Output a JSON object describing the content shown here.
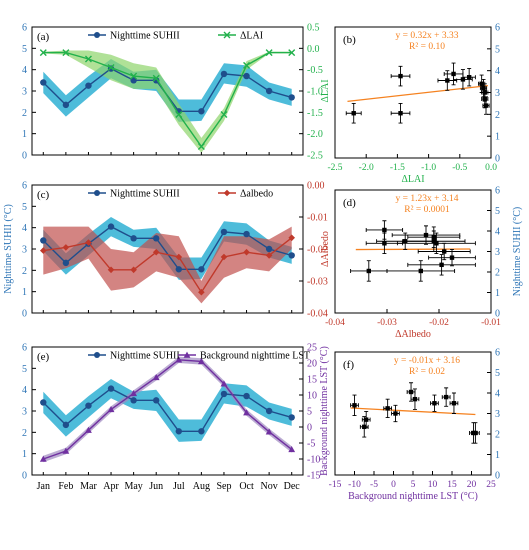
{
  "months": [
    "Jan",
    "Feb",
    "Mar",
    "Apr",
    "May",
    "Jun",
    "Jul",
    "Aug",
    "Sep",
    "Oct",
    "Nov",
    "Dec"
  ],
  "colors": {
    "suhii": "#1f4e8c",
    "suhii_band": "#2fb0d4",
    "lai": "#22b14c",
    "lai_band": "#8fd46b",
    "albedo": "#b22222",
    "albedo_band": "#c0504d",
    "lst": "#6b3f8f",
    "lst_band": "#a08ac0",
    "fit": "#f58220",
    "point": "#000000",
    "axis_blue": "#2e75b6",
    "axis_green": "#22b14c",
    "axis_red": "#c0392b",
    "axis_purple": "#7030a0"
  },
  "chart_data": [
    {
      "id": "a",
      "type": "line",
      "panel_label": "(a)",
      "x": [
        "Jan",
        "Feb",
        "Mar",
        "Apr",
        "May",
        "Jun",
        "Jul",
        "Aug",
        "Sep",
        "Oct",
        "Nov",
        "Dec"
      ],
      "xlabel": "",
      "ylabel_left": "",
      "ylabel_right": "ΔLAI",
      "ylim_left": [
        0,
        6
      ],
      "yticks_left": [
        "0",
        "1",
        "2",
        "3",
        "4",
        "5",
        "6"
      ],
      "ylim_right": [
        -2.5,
        0.5
      ],
      "yticks_right": [
        "-2.5",
        "-2.0",
        "-1.5",
        "-1.0",
        "-0.5",
        "0.0",
        "0.5"
      ],
      "legend": [
        "Nighttime SUHII",
        "ΔLAI"
      ],
      "series": [
        {
          "name": "Nighttime SUHII",
          "axis": "left",
          "values": [
            3.4,
            2.35,
            3.25,
            4.05,
            3.5,
            3.5,
            2.05,
            2.05,
            3.8,
            3.7,
            3.0,
            2.7
          ],
          "lower": [
            2.9,
            1.8,
            2.7,
            3.6,
            3.1,
            3.0,
            1.55,
            1.6,
            3.35,
            3.2,
            2.6,
            2.3
          ],
          "upper": [
            3.9,
            2.8,
            3.7,
            4.5,
            3.9,
            4.0,
            2.6,
            2.6,
            4.3,
            4.2,
            3.4,
            3.1
          ]
        },
        {
          "name": "ΔLAI",
          "axis": "right",
          "values": [
            -0.1,
            -0.1,
            -0.25,
            -0.45,
            -0.65,
            -0.7,
            -1.55,
            -2.3,
            -1.55,
            -0.4,
            -0.1,
            -0.1
          ],
          "lower": [
            -0.12,
            -0.15,
            -0.45,
            -0.75,
            -0.95,
            -0.95,
            -1.8,
            -2.45,
            -1.7,
            -0.5,
            -0.12,
            -0.12
          ],
          "upper": [
            -0.08,
            -0.05,
            -0.05,
            -0.15,
            -0.35,
            -0.45,
            -1.3,
            -2.1,
            -1.4,
            -0.3,
            -0.08,
            -0.08
          ]
        }
      ]
    },
    {
      "id": "b",
      "type": "scatter",
      "panel_label": "(b)",
      "xlabel": "ΔLAI",
      "ylabel_right": "",
      "xlim": [
        -2.5,
        0.0
      ],
      "xticks": [
        "-2.5",
        "-2.0",
        "-1.5",
        "-1.0",
        "-0.5",
        "0.0"
      ],
      "ylim": [
        0,
        6
      ],
      "yticks": [
        "0",
        "1",
        "2",
        "3",
        "4",
        "5",
        "6"
      ],
      "equation": "y = 0.32x + 3.33",
      "r2": "R² = 0.10",
      "fit": {
        "slope": 0.32,
        "intercept": 3.33,
        "x_range": [
          -2.3,
          -0.05
        ]
      },
      "points": [
        {
          "x": -2.2,
          "y": 2.05,
          "xerr": 0.12,
          "yerr": 0.45
        },
        {
          "x": -1.45,
          "y": 2.05,
          "xerr": 0.15,
          "yerr": 0.45
        },
        {
          "x": -1.45,
          "y": 3.75,
          "xerr": 0.15,
          "yerr": 0.45
        },
        {
          "x": -0.7,
          "y": 3.55,
          "xerr": 0.15,
          "yerr": 0.45
        },
        {
          "x": -0.6,
          "y": 3.85,
          "xerr": 0.15,
          "yerr": 0.5
        },
        {
          "x": -0.45,
          "y": 3.6,
          "xerr": 0.15,
          "yerr": 0.45
        },
        {
          "x": -0.35,
          "y": 3.7,
          "xerr": 0.1,
          "yerr": 0.4
        },
        {
          "x": -0.15,
          "y": 3.4,
          "xerr": 0.05,
          "yerr": 0.4
        },
        {
          "x": -0.12,
          "y": 3.2,
          "xerr": 0.05,
          "yerr": 0.4
        },
        {
          "x": -0.1,
          "y": 3.0,
          "xerr": 0.05,
          "yerr": 0.4
        },
        {
          "x": -0.1,
          "y": 2.7,
          "xerr": 0.05,
          "yerr": 0.4
        },
        {
          "x": -0.08,
          "y": 2.4,
          "xerr": 0.05,
          "yerr": 0.4
        }
      ]
    },
    {
      "id": "c",
      "type": "line",
      "panel_label": "(c)",
      "x": [
        "Jan",
        "Feb",
        "Mar",
        "Apr",
        "May",
        "Jun",
        "Jul",
        "Aug",
        "Sep",
        "Oct",
        "Nov",
        "Dec"
      ],
      "xlabel": "",
      "ylabel_left": "Nighttime SUHII (°C)",
      "ylabel_right": "ΔAlbedo",
      "ylim_left": [
        0,
        6
      ],
      "yticks_left": [
        "0",
        "1",
        "2",
        "3",
        "4",
        "5",
        "6"
      ],
      "ylim_right": [
        -0.04,
        0.0
      ],
      "yticks_right": [
        "-0.04",
        "-0.03",
        "-0.02",
        "-0.01",
        "0.00"
      ],
      "legend": [
        "Nighttime SUHII",
        "Δalbedo"
      ],
      "series": [
        {
          "name": "Nighttime SUHII",
          "axis": "left",
          "values": [
            3.4,
            2.35,
            3.25,
            4.05,
            3.5,
            3.5,
            2.05,
            2.05,
            3.8,
            3.7,
            3.0,
            2.7
          ],
          "lower": [
            2.9,
            1.8,
            2.7,
            3.6,
            3.1,
            3.0,
            1.55,
            1.6,
            3.35,
            3.2,
            2.6,
            2.3
          ],
          "upper": [
            3.9,
            2.8,
            3.7,
            4.5,
            3.9,
            4.0,
            2.6,
            2.6,
            4.3,
            4.2,
            3.4,
            3.1
          ]
        },
        {
          "name": "Δalbedo",
          "axis": "right",
          "values": [
            -0.0205,
            -0.0195,
            -0.018,
            -0.0265,
            -0.0265,
            -0.021,
            -0.0225,
            -0.0335,
            -0.0225,
            -0.021,
            -0.022,
            -0.0165
          ],
          "lower": [
            -0.028,
            -0.026,
            -0.023,
            -0.033,
            -0.032,
            -0.027,
            -0.029,
            -0.037,
            -0.029,
            -0.026,
            -0.027,
            -0.02
          ],
          "upper": [
            -0.013,
            -0.013,
            -0.013,
            -0.02,
            -0.021,
            -0.015,
            -0.016,
            -0.03,
            -0.016,
            -0.016,
            -0.017,
            -0.013
          ]
        }
      ]
    },
    {
      "id": "d",
      "type": "scatter",
      "panel_label": "(d)",
      "xlabel": "ΔAlbedo",
      "ylabel_right": "Nighttime SUHII (°C)",
      "xlim": [
        -0.04,
        -0.01
      ],
      "xticks": [
        "-0.04",
        "-0.03",
        "-0.02",
        "-0.01"
      ],
      "ylim": [
        0,
        6
      ],
      "yticks": [
        "0",
        "1",
        "2",
        "3",
        "4",
        "5",
        "6"
      ],
      "equation": "y = 1.23x + 3.14",
      "r2": "R² = 0.0001",
      "fit": {
        "slope": 1.23,
        "intercept": 3.14,
        "x_range": [
          -0.036,
          -0.014
        ]
      },
      "points": [
        {
          "x": -0.0335,
          "y": 2.05,
          "xerr": 0.0035,
          "yerr": 0.5
        },
        {
          "x": -0.0305,
          "y": 4.05,
          "xerr": 0.0035,
          "yerr": 0.45
        },
        {
          "x": -0.0305,
          "y": 3.4,
          "xerr": 0.0035,
          "yerr": 0.5
        },
        {
          "x": -0.0265,
          "y": 3.5,
          "xerr": 0.0055,
          "yerr": 0.4
        },
        {
          "x": -0.0235,
          "y": 2.05,
          "xerr": 0.0065,
          "yerr": 0.5
        },
        {
          "x": -0.0225,
          "y": 3.8,
          "xerr": 0.0065,
          "yerr": 0.45
        },
        {
          "x": -0.021,
          "y": 3.5,
          "xerr": 0.006,
          "yerr": 0.5
        },
        {
          "x": -0.021,
          "y": 3.7,
          "xerr": 0.005,
          "yerr": 0.5
        },
        {
          "x": -0.0205,
          "y": 3.4,
          "xerr": 0.0075,
          "yerr": 0.5
        },
        {
          "x": -0.0195,
          "y": 2.35,
          "xerr": 0.0065,
          "yerr": 0.5
        },
        {
          "x": -0.019,
          "y": 3.0,
          "xerr": 0.005,
          "yerr": 0.4
        },
        {
          "x": -0.0175,
          "y": 2.7,
          "xerr": 0.0045,
          "yerr": 0.4
        }
      ]
    },
    {
      "id": "e",
      "type": "line",
      "panel_label": "(e)",
      "x": [
        "Jan",
        "Feb",
        "Mar",
        "Apr",
        "May",
        "Jun",
        "Jul",
        "Aug",
        "Sep",
        "Oct",
        "Nov",
        "Dec"
      ],
      "xlabel": "",
      "ylabel_left": "",
      "ylabel_right": "Background  nighttime LST (°C)",
      "ylim_left": [
        0,
        6
      ],
      "yticks_left": [
        "0",
        "1",
        "2",
        "3",
        "4",
        "5",
        "6"
      ],
      "ylim_right": [
        -15,
        25
      ],
      "yticks_right": [
        "-15",
        "-10",
        "-5",
        "0",
        "5",
        "10",
        "15",
        "20",
        "25"
      ],
      "legend": [
        "Nighttime SUHII",
        "Background nighttime LST"
      ],
      "series": [
        {
          "name": "Nighttime SUHII",
          "axis": "left",
          "values": [
            3.4,
            2.35,
            3.25,
            4.05,
            3.5,
            3.5,
            2.05,
            2.05,
            3.8,
            3.7,
            3.0,
            2.7
          ],
          "lower": [
            2.9,
            1.8,
            2.7,
            3.6,
            3.1,
            3.0,
            1.55,
            1.6,
            3.35,
            3.2,
            2.6,
            2.3
          ],
          "upper": [
            3.9,
            2.8,
            3.7,
            4.5,
            3.9,
            4.0,
            2.6,
            2.6,
            4.3,
            4.2,
            3.4,
            3.1
          ]
        },
        {
          "name": "Background nighttime LST",
          "axis": "right",
          "values": [
            -10.0,
            -7.5,
            -1.0,
            5.5,
            10.5,
            15.5,
            21.0,
            20.5,
            13.5,
            4.5,
            -1.5,
            -7.0
          ],
          "lower": [
            -11.0,
            -8.5,
            -2.0,
            4.5,
            9.5,
            14.5,
            20.0,
            19.5,
            12.5,
            3.5,
            -2.5,
            -8.0
          ],
          "upper": [
            -9.0,
            -6.5,
            0.0,
            6.5,
            11.5,
            16.5,
            22.0,
            21.5,
            14.5,
            5.5,
            -0.5,
            -6.0
          ]
        }
      ]
    },
    {
      "id": "f",
      "type": "scatter",
      "panel_label": "(f)",
      "xlabel": "Background nighttime LST (°C)",
      "ylabel_right": "",
      "xlim": [
        -15,
        25
      ],
      "xticks": [
        "-15",
        "-10",
        "-5",
        "0",
        "5",
        "10",
        "15",
        "20",
        "25"
      ],
      "ylim": [
        0,
        6
      ],
      "yticks": [
        "0",
        "1",
        "2",
        "3",
        "4",
        "5",
        "6"
      ],
      "equation": "y = -0.01x + 3.16",
      "r2": "R² = 0.02",
      "fit": {
        "slope": -0.01,
        "intercept": 3.16,
        "x_range": [
          -11,
          21
        ]
      },
      "points": [
        {
          "x": -10.0,
          "y": 3.4,
          "xerr": 1.0,
          "yerr": 0.5
        },
        {
          "x": -7.5,
          "y": 2.35,
          "xerr": 1.0,
          "yerr": 0.5
        },
        {
          "x": -7.0,
          "y": 2.7,
          "xerr": 1.0,
          "yerr": 0.4
        },
        {
          "x": -1.5,
          "y": 3.25,
          "xerr": 1.0,
          "yerr": 0.45
        },
        {
          "x": 0.5,
          "y": 3.0,
          "xerr": 1.0,
          "yerr": 0.4
        },
        {
          "x": 4.5,
          "y": 4.05,
          "xerr": 1.0,
          "yerr": 0.45
        },
        {
          "x": 5.5,
          "y": 3.7,
          "xerr": 1.0,
          "yerr": 0.5
        },
        {
          "x": 10.5,
          "y": 3.5,
          "xerr": 1.0,
          "yerr": 0.4
        },
        {
          "x": 13.5,
          "y": 3.8,
          "xerr": 1.0,
          "yerr": 0.45
        },
        {
          "x": 15.5,
          "y": 3.5,
          "xerr": 1.0,
          "yerr": 0.5
        },
        {
          "x": 20.5,
          "y": 2.05,
          "xerr": 1.0,
          "yerr": 0.5
        },
        {
          "x": 21.0,
          "y": 2.05,
          "xerr": 1.0,
          "yerr": 0.5
        }
      ]
    }
  ]
}
